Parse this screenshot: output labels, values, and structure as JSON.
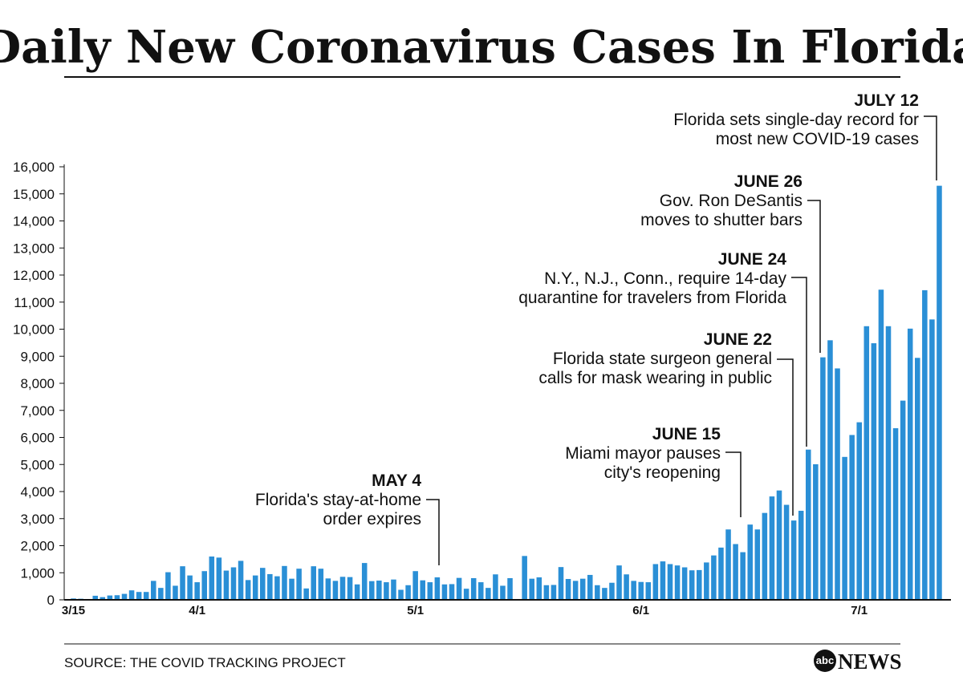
{
  "chart_data": {
    "type": "bar",
    "title": "Daily New Coronavirus Cases In Florida",
    "xlabel": "",
    "ylabel": "",
    "ylim": [
      0,
      16000
    ],
    "yticks": [
      "0",
      "1,000",
      "2,000",
      "3,000",
      "4,000",
      "5,000",
      "6,000",
      "7,000",
      "8,000",
      "9,000",
      "10,000",
      "11,000",
      "12,000",
      "13,000",
      "14,000",
      "15,000",
      "16,000"
    ],
    "ytick_values": [
      0,
      1000,
      2000,
      3000,
      4000,
      5000,
      6000,
      7000,
      8000,
      9000,
      10000,
      11000,
      12000,
      13000,
      14000,
      15000,
      16000
    ],
    "xticks": [
      {
        "label": "3/15",
        "index": 0
      },
      {
        "label": "4/1",
        "index": 17
      },
      {
        "label": "5/1",
        "index": 47
      },
      {
        "label": "6/1",
        "index": 78
      },
      {
        "label": "7/1",
        "index": 108
      }
    ],
    "start_date": "3/15",
    "end_date": "7/12",
    "bar_color": "#2a8fd6",
    "values": [
      50,
      40,
      30,
      150,
      100,
      160,
      170,
      220,
      350,
      290,
      290,
      700,
      440,
      1020,
      520,
      1240,
      900,
      650,
      1060,
      1600,
      1560,
      1080,
      1200,
      1440,
      730,
      900,
      1180,
      950,
      870,
      1250,
      780,
      1150,
      420,
      1240,
      1150,
      790,
      700,
      850,
      840,
      570,
      1360,
      690,
      710,
      650,
      750,
      370,
      540,
      1060,
      720,
      650,
      830,
      570,
      580,
      810,
      410,
      800,
      650,
      440,
      940,
      520,
      800,
      0,
      1620,
      780,
      830,
      540,
      550,
      1210,
      770,
      700,
      780,
      920,
      540,
      440,
      630,
      1270,
      940,
      700,
      660,
      650,
      1320,
      1420,
      1320,
      1270,
      1200,
      1090,
      1100,
      1380,
      1640,
      1930,
      2600,
      2060,
      1760,
      2780,
      2600,
      3210,
      3820,
      4040,
      3510,
      2930,
      3290,
      5550,
      5010,
      8960,
      9590,
      8550,
      5280,
      6090,
      6560,
      10110,
      9480,
      11460,
      10110,
      6340,
      7360,
      10020,
      8940,
      11440,
      10360,
      15300
    ],
    "annotations": [
      {
        "date": "MAY 4",
        "lines": [
          "Florida's stay-at-home",
          "order expires"
        ],
        "index": 50
      },
      {
        "date": "JUNE 15",
        "lines": [
          "Miami mayor pauses",
          "city's reopening"
        ],
        "index": 92
      },
      {
        "date": "JUNE 22",
        "lines": [
          "Florida state surgeon general",
          "calls for mask wearing in public"
        ],
        "index": 99
      },
      {
        "date": "JUNE 24",
        "lines": [
          "N.Y., N.J., Conn., require 14-day",
          "quarantine for travelers from Florida"
        ],
        "index": 101
      },
      {
        "date": "JUNE 26",
        "lines": [
          "Gov. Ron DeSantis",
          "moves to shutter bars"
        ],
        "index": 103
      },
      {
        "date": "JULY 12",
        "lines": [
          "Florida sets single-day record for",
          "most new COVID-19 cases"
        ],
        "index": 119
      }
    ]
  },
  "footer": {
    "source": "SOURCE: THE COVID TRACKING PROJECT",
    "logo_mark": "abc",
    "logo_text": "NEWS"
  }
}
